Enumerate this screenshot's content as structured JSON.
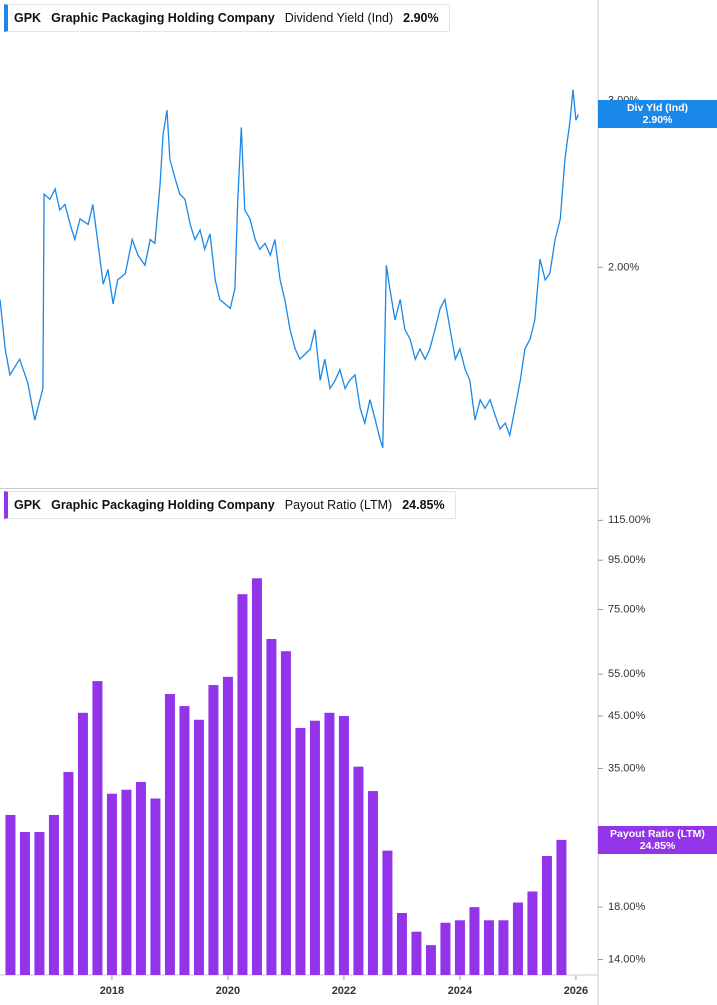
{
  "chart_data": [
    {
      "type": "line",
      "ticker": "GPK",
      "company": "Graphic Packaging Holding Company",
      "log": true,
      "xlim": [
        2016.07,
        2026.38
      ],
      "ylim": [
        1.17,
        3.83
      ],
      "yticks": [
        {
          "value": 3,
          "label": "3.00%"
        },
        {
          "value": 2,
          "label": "2.00%"
        }
      ],
      "tag_label": "Div Yld (Ind)",
      "last_value": 2.9,
      "last_label": "2.90%",
      "x": [
        2016.07,
        2016.16,
        2016.24,
        2016.41,
        2016.55,
        2016.67,
        2016.76,
        2016.81,
        2016.83,
        2016.93,
        2017.02,
        2017.1,
        2017.19,
        2017.28,
        2017.36,
        2017.45,
        2017.59,
        2017.67,
        2017.76,
        2017.85,
        2017.93,
        2018.02,
        2018.1,
        2018.23,
        2018.35,
        2018.45,
        2018.57,
        2018.66,
        2018.74,
        2018.83,
        2018.88,
        2018.95,
        2019.0,
        2019.09,
        2019.17,
        2019.26,
        2019.35,
        2019.43,
        2019.52,
        2019.6,
        2019.69,
        2019.78,
        2019.86,
        2019.95,
        2020.04,
        2020.12,
        2020.17,
        2020.23,
        2020.29,
        2020.38,
        2020.47,
        2020.55,
        2020.64,
        2020.73,
        2020.81,
        2020.9,
        2020.98,
        2021.07,
        2021.16,
        2021.24,
        2021.33,
        2021.42,
        2021.5,
        2021.59,
        2021.67,
        2021.76,
        2021.85,
        2021.93,
        2022.02,
        2022.1,
        2022.19,
        2022.28,
        2022.36,
        2022.45,
        2022.54,
        2022.62,
        2022.67,
        2022.73,
        2022.79,
        2022.88,
        2022.97,
        2023.05,
        2023.14,
        2023.23,
        2023.31,
        2023.4,
        2023.48,
        2023.57,
        2023.66,
        2023.74,
        2023.83,
        2023.92,
        2024.0,
        2024.09,
        2024.17,
        2024.26,
        2024.35,
        2024.43,
        2024.52,
        2024.6,
        2024.69,
        2024.78,
        2024.86,
        2024.95,
        2025.04,
        2025.12,
        2025.21,
        2025.29,
        2025.38,
        2025.47,
        2025.55,
        2025.64,
        2025.73,
        2025.81,
        2025.9,
        2025.95,
        2026.0,
        2026.04
      ],
      "series": [
        {
          "name": "Dividend Yield (Ind)",
          "color": "#1a88e8",
          "values": [
            1.85,
            1.64,
            1.54,
            1.6,
            1.51,
            1.38,
            1.45,
            1.49,
            2.39,
            2.36,
            2.42,
            2.3,
            2.33,
            2.22,
            2.14,
            2.25,
            2.22,
            2.33,
            2.12,
            1.92,
            1.99,
            1.83,
            1.94,
            1.97,
            2.14,
            2.06,
            2.01,
            2.14,
            2.12,
            2.45,
            2.76,
            2.93,
            2.6,
            2.48,
            2.39,
            2.36,
            2.22,
            2.14,
            2.19,
            2.09,
            2.17,
            1.94,
            1.85,
            1.83,
            1.81,
            1.9,
            2.36,
            2.81,
            2.3,
            2.25,
            2.14,
            2.09,
            2.12,
            2.06,
            2.14,
            1.94,
            1.85,
            1.72,
            1.64,
            1.6,
            1.62,
            1.64,
            1.72,
            1.52,
            1.6,
            1.49,
            1.52,
            1.56,
            1.49,
            1.52,
            1.54,
            1.42,
            1.37,
            1.45,
            1.38,
            1.32,
            1.29,
            2.01,
            1.9,
            1.76,
            1.85,
            1.72,
            1.68,
            1.6,
            1.64,
            1.6,
            1.64,
            1.72,
            1.81,
            1.85,
            1.72,
            1.6,
            1.64,
            1.56,
            1.52,
            1.38,
            1.45,
            1.42,
            1.45,
            1.4,
            1.35,
            1.37,
            1.33,
            1.42,
            1.52,
            1.64,
            1.68,
            1.76,
            2.04,
            1.94,
            1.97,
            2.14,
            2.25,
            2.6,
            2.86,
            3.08,
            2.86,
            2.9
          ]
        }
      ]
    },
    {
      "type": "bar",
      "ticker": "GPK",
      "company": "Graphic Packaging Holding Company",
      "log": true,
      "xlim": [
        2016.07,
        2026.38
      ],
      "ylim": [
        13,
        133
      ],
      "xticks": [
        2018,
        2020,
        2022,
        2024,
        2026
      ],
      "yticks": [
        {
          "value": 115,
          "label": "115.00%"
        },
        {
          "value": 95,
          "label": "95.00%"
        },
        {
          "value": 75,
          "label": "75.00%"
        },
        {
          "value": 55,
          "label": "55.00%"
        },
        {
          "value": 45,
          "label": "45.00%"
        },
        {
          "value": 35,
          "label": "35.00%"
        },
        {
          "value": 18,
          "label": "18.00%"
        },
        {
          "value": 14,
          "label": "14.00%"
        }
      ],
      "tag_label": "Payout Ratio (LTM)",
      "last_value": 24.85,
      "last_label": "24.85%",
      "x": [
        2016.25,
        2016.5,
        2016.75,
        2017,
        2017.25,
        2017.5,
        2017.75,
        2018,
        2018.25,
        2018.5,
        2018.75,
        2019,
        2019.25,
        2019.5,
        2019.75,
        2020,
        2020.25,
        2020.5,
        2020.75,
        2021,
        2021.25,
        2021.5,
        2021.75,
        2022,
        2022.25,
        2022.5,
        2022.75,
        2023,
        2023.25,
        2023.5,
        2023.75,
        2024,
        2024.25,
        2024.5,
        2024.75,
        2025,
        2025.25,
        2025.5,
        2025.75
      ],
      "series": [
        {
          "name": "Payout Ratio (LTM)",
          "color": "#9333ea",
          "values": [
            28.0,
            25.8,
            25.8,
            28.0,
            34.4,
            45.7,
            53.2,
            31.0,
            31.6,
            32.8,
            30.3,
            50.0,
            47.2,
            44.2,
            52.2,
            54.3,
            80.7,
            87.1,
            65.1,
            61.4,
            42.5,
            44.0,
            45.7,
            45.0,
            35.3,
            31.4,
            23.6,
            17.5,
            16.0,
            15.0,
            16.7,
            16.9,
            18.0,
            16.9,
            16.9,
            18.4,
            19.4,
            23.0,
            24.85
          ]
        }
      ]
    }
  ]
}
